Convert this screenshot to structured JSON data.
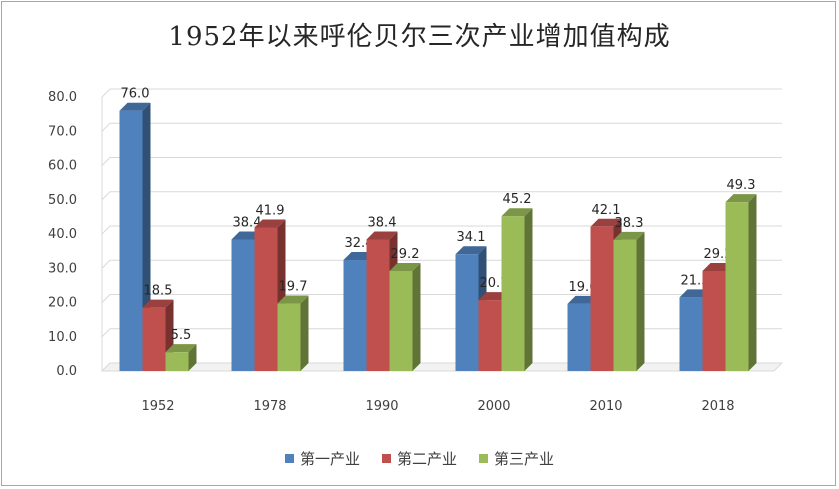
{
  "chart_data": {
    "type": "bar",
    "title": "1952年以来呼伦贝尔三次产业增加值构成",
    "categories": [
      "1952",
      "1978",
      "1990",
      "2000",
      "2010",
      "2018"
    ],
    "series": [
      {
        "name": "第一产业",
        "color": "#4f81bd",
        "values": [
          76.0,
          38.4,
          32.4,
          34.1,
          19.6,
          21.5
        ]
      },
      {
        "name": "第二产业",
        "color": "#c0504d",
        "values": [
          18.5,
          41.9,
          38.4,
          20.7,
          42.1,
          29.2
        ]
      },
      {
        "name": "第三产业",
        "color": "#9bbb59",
        "values": [
          5.5,
          19.7,
          29.2,
          45.2,
          38.3,
          49.3
        ]
      }
    ],
    "ylim": [
      0,
      80
    ],
    "yticks": [
      "0.0",
      "10.0",
      "20.0",
      "30.0",
      "40.0",
      "50.0",
      "60.0",
      "70.0",
      "80.0"
    ],
    "grid": true,
    "legend_position": "bottom",
    "style": "3d-clustered-column"
  }
}
